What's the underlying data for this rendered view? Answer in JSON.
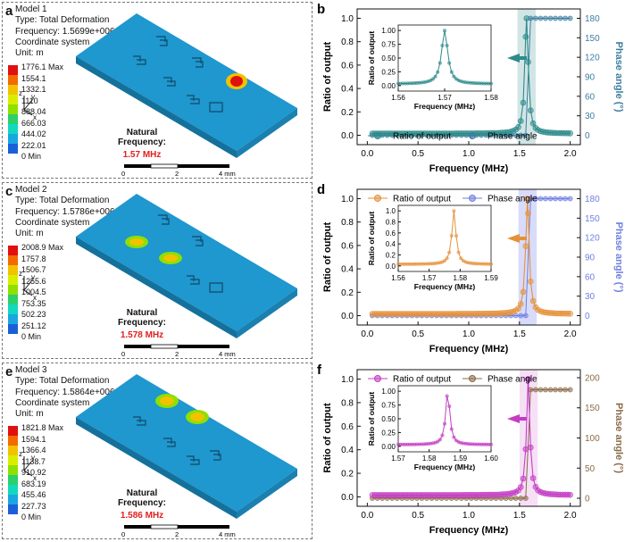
{
  "simulation_panels": [
    {
      "letter": "a",
      "model": "Model 1",
      "type_line": "Type: Total Deformation",
      "frequency_line": "Frequency: 1.5699e+006 Hz",
      "system_line": "Coordinate system",
      "unit_line": "Unit: m",
      "legend_labels": [
        "1776.1 Max",
        "1554.1",
        "1332.1",
        "1110",
        "888.04",
        "666.03",
        "444.02",
        "222.01",
        "0 Min"
      ],
      "natural_frequency_label": "Natural Frequency:",
      "natural_frequency_value": "1.57 MHz",
      "scale_labels": [
        "0",
        "2",
        "4 mm"
      ]
    },
    {
      "letter": "c",
      "model": "Model 2",
      "type_line": "Type: Total Deformation",
      "frequency_line": "Frequency: 1.5786e+006 Hz",
      "system_line": "Coordinate system",
      "unit_line": "Unit: m",
      "legend_labels": [
        "2008.9 Max",
        "1757.8",
        "1506.7",
        "1255.6",
        "1004.5",
        "753.35",
        "502.23",
        "251.12",
        "0 Min"
      ],
      "natural_frequency_label": "Natural Frequency:",
      "natural_frequency_value": "1.578 MHz",
      "scale_labels": [
        "0",
        "2",
        "4 mm"
      ]
    },
    {
      "letter": "e",
      "model": "Model 3",
      "type_line": "Type: Total Deformation",
      "frequency_line": "Frequency: 1.5864e+006 Hz",
      "system_line": "Coordinate system",
      "unit_line": "Unit: m",
      "legend_labels": [
        "1821.8 Max",
        "1594.1",
        "1366.4",
        "1138.7",
        "910.92",
        "683.19",
        "455.46",
        "227.73",
        "0 Min"
      ],
      "natural_frequency_label": "Natural Frequency:",
      "natural_frequency_value": "1.586 MHz",
      "scale_labels": [
        "0",
        "2",
        "4 mm"
      ]
    }
  ],
  "legend_colors": [
    "#e01010",
    "#f26a00",
    "#f2c200",
    "#d8ee00",
    "#8ee000",
    "#2bd06a",
    "#12d8c0",
    "#1aa6e0",
    "#1a5fd8"
  ],
  "axis_letters": [
    "z",
    "y",
    "x"
  ],
  "chart_data": [
    {
      "letter": "b",
      "type": "line",
      "color": "#2e8b8b",
      "phase_color": "#3c7ea0",
      "band_color": "#7fb5b5",
      "xlabel": "Frequency (MHz)",
      "ylabel": "Ratio of output",
      "y2label": "Phase angle (°)",
      "xlim": [
        -0.1,
        2.1
      ],
      "ylim": [
        -0.08,
        1.08
      ],
      "y2lim": [
        -14.4,
        194.4
      ],
      "xticks": [
        0.0,
        0.5,
        1.0,
        1.5,
        2.0
      ],
      "yticks": [
        0.0,
        0.2,
        0.4,
        0.6,
        0.8,
        1.0
      ],
      "y2ticks": [
        0,
        30,
        60,
        90,
        120,
        150,
        180
      ],
      "resonance": 1.57,
      "band": [
        1.48,
        1.66
      ],
      "legend": [
        "Ratio of output",
        "Phase angle"
      ],
      "legend_position": "bottom",
      "inset": {
        "xlim": [
          1.56,
          1.58
        ],
        "ylim": [
          -0.1,
          1.1
        ],
        "xticks": [
          1.56,
          1.57,
          1.58
        ],
        "yticks": [
          0.0,
          0.25,
          0.5,
          0.75,
          1.0
        ],
        "xlabel": "Frequency (MHz)",
        "ylabel": "Ratio of output",
        "resonance": 1.57
      }
    },
    {
      "letter": "d",
      "type": "line",
      "color": "#e5913a",
      "phase_color": "#6f7fe0",
      "band_color": "#8f9cf0",
      "xlabel": "Frequency (MHz)",
      "ylabel": "Ratio of output",
      "y2label": "Phase angle (°)",
      "xlim": [
        -0.1,
        2.1
      ],
      "ylim": [
        -0.08,
        1.08
      ],
      "y2lim": [
        -14.4,
        194.4
      ],
      "xticks": [
        0.0,
        0.5,
        1.0,
        1.5,
        2.0
      ],
      "yticks": [
        0.0,
        0.2,
        0.4,
        0.6,
        0.8,
        1.0
      ],
      "y2ticks": [
        0,
        30,
        60,
        90,
        120,
        150,
        180
      ],
      "resonance": 1.578,
      "band": [
        1.49,
        1.67
      ],
      "legend": [
        "Ratio of output",
        "Phase angle"
      ],
      "legend_position": "top",
      "inset": {
        "xlim": [
          1.56,
          1.59
        ],
        "ylim": [
          -0.1,
          1.1
        ],
        "xticks": [
          1.56,
          1.57,
          1.58,
          1.59
        ],
        "yticks": [
          0.0,
          0.2,
          0.4,
          0.6,
          0.8,
          1.0
        ],
        "xlabel": "Frequency (MHz)",
        "ylabel": "Ratio of output",
        "resonance": 1.578
      }
    },
    {
      "letter": "f",
      "type": "line",
      "color": "#c43dc4",
      "phase_color": "#8a6a48",
      "band_color": "#e6a6e6",
      "xlabel": "Frequency (MHz)",
      "ylabel": "Ratio of output",
      "y2label": "Phase angle (°)",
      "xlim": [
        -0.1,
        2.1
      ],
      "ylim": [
        -0.08,
        1.08
      ],
      "y2lim": [
        -13.33,
        213.33
      ],
      "xticks": [
        0.0,
        0.5,
        1.0,
        1.5,
        2.0
      ],
      "yticks": [
        0.0,
        0.2,
        0.4,
        0.6,
        0.8,
        1.0
      ],
      "y2ticks": [
        0,
        50,
        100,
        150,
        200
      ],
      "resonance": 1.586,
      "band": [
        1.5,
        1.68
      ],
      "legend": [
        "Ratio of output",
        "Phase angle"
      ],
      "legend_position": "top",
      "inset": {
        "xlim": [
          1.57,
          1.6
        ],
        "ylim": [
          -0.1,
          1.1
        ],
        "xticks": [
          1.57,
          1.58,
          1.59,
          1.6
        ],
        "yticks": [
          0.0,
          0.25,
          0.5,
          0.75,
          1.0
        ],
        "xlabel": "Frequency (MHz)",
        "ylabel": "Ratio of output",
        "resonance": 1.586
      }
    }
  ]
}
